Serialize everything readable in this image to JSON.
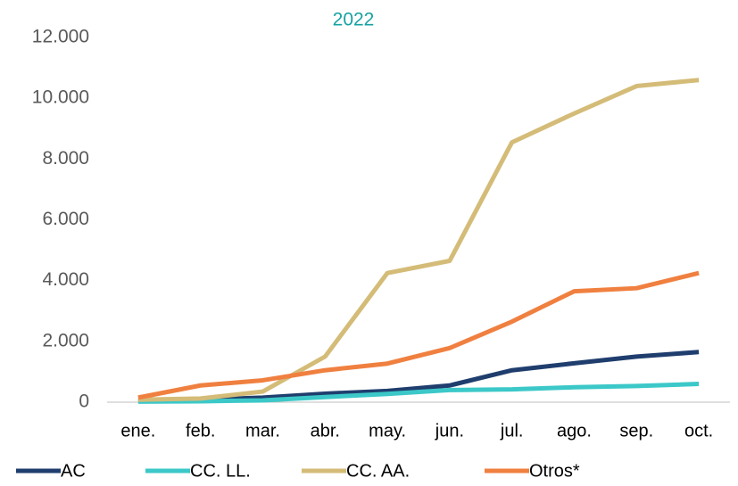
{
  "chart_data": {
    "type": "line",
    "title": "2022",
    "categories": [
      "ene.",
      "feb.",
      "mar.",
      "abr.",
      "may.",
      "jun.",
      "jul.",
      "ago.",
      "sep.",
      "oct."
    ],
    "series": [
      {
        "name": "AC",
        "color": "#1f3e6e",
        "values": [
          50,
          80,
          150,
          280,
          370,
          550,
          1050,
          1280,
          1500,
          1650
        ]
      },
      {
        "name": "CC. LL.",
        "color": "#3cc8c8",
        "values": [
          20,
          30,
          60,
          170,
          270,
          400,
          420,
          490,
          530,
          600
        ]
      },
      {
        "name": "CC. AA.",
        "color": "#d4bc78",
        "values": [
          80,
          120,
          350,
          1500,
          4250,
          4650,
          8550,
          9500,
          10400,
          10600
        ]
      },
      {
        "name": "Otros*",
        "color": "#f08040",
        "values": [
          150,
          550,
          720,
          1050,
          1270,
          1780,
          2650,
          3650,
          3750,
          4250
        ]
      }
    ],
    "ylim": [
      0,
      12000
    ],
    "yticks": [
      0,
      {
        "value": 2000,
        "label": "2.000"
      },
      {
        "value": 4000,
        "label": "4.000"
      },
      {
        "value": 6000,
        "label": "6.000"
      },
      {
        "value": 8000,
        "label": "8.000"
      },
      {
        "value": 10000,
        "label": "10.000"
      },
      {
        "value": 12000,
        "label": "12.000"
      }
    ],
    "grid": false,
    "legend": "bottom"
  }
}
